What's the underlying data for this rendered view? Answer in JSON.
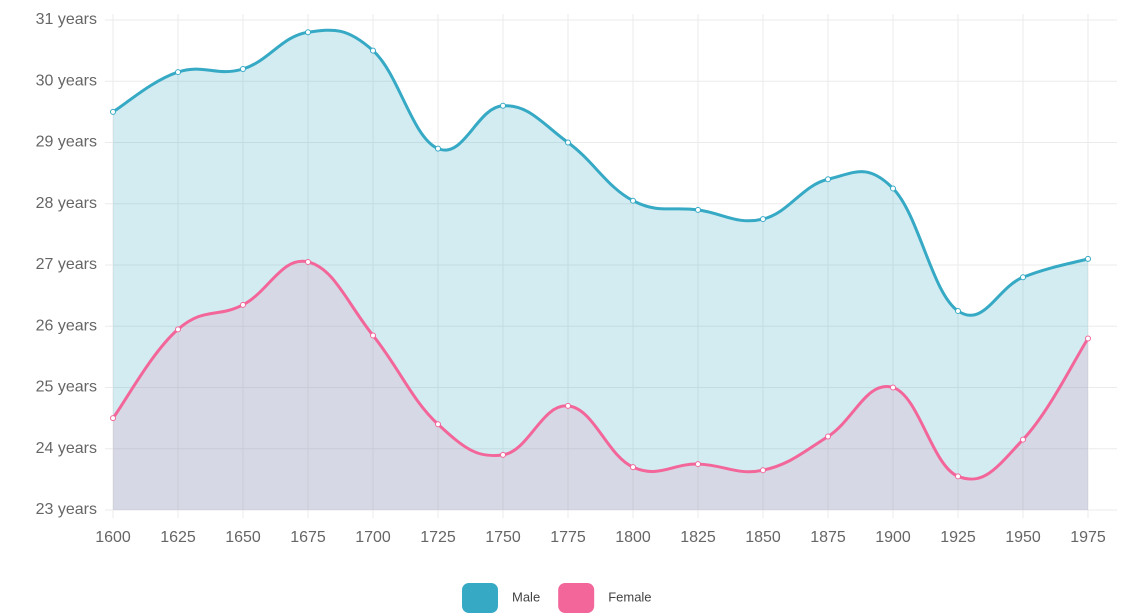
{
  "chart_data": {
    "type": "area",
    "x": [
      1600,
      1625,
      1650,
      1675,
      1700,
      1725,
      1750,
      1775,
      1800,
      1825,
      1850,
      1875,
      1900,
      1925,
      1950,
      1975
    ],
    "series": [
      {
        "name": "Male",
        "color": "#36a9c5",
        "values": [
          29.5,
          30.15,
          30.2,
          30.8,
          30.5,
          28.9,
          29.6,
          29.0,
          28.05,
          27.9,
          27.75,
          28.4,
          28.25,
          26.25,
          26.8,
          27.1
        ]
      },
      {
        "name": "Female",
        "color": "#f2669a",
        "values": [
          24.5,
          25.95,
          26.35,
          27.05,
          25.85,
          24.4,
          23.9,
          24.7,
          23.7,
          23.75,
          23.65,
          24.2,
          25.0,
          23.55,
          24.15,
          25.8
        ]
      }
    ],
    "xlim": [
      1600,
      1975
    ],
    "xticks": [
      1600,
      1625,
      1650,
      1675,
      1700,
      1725,
      1750,
      1775,
      1800,
      1825,
      1850,
      1875,
      1900,
      1925,
      1950,
      1975
    ],
    "ylim": [
      23,
      31
    ],
    "yticks": [
      {
        "value": 23,
        "label": "23 years"
      },
      {
        "value": 24,
        "label": "24 years"
      },
      {
        "value": 25,
        "label": "25 years"
      },
      {
        "value": 26,
        "label": "26 years"
      },
      {
        "value": 27,
        "label": "27 years"
      },
      {
        "value": 28,
        "label": "28 years"
      },
      {
        "value": 29,
        "label": "29 years"
      },
      {
        "value": 30,
        "label": "30 years"
      },
      {
        "value": 31,
        "label": "31 years"
      }
    ],
    "grid": true,
    "legend": "bottom"
  }
}
